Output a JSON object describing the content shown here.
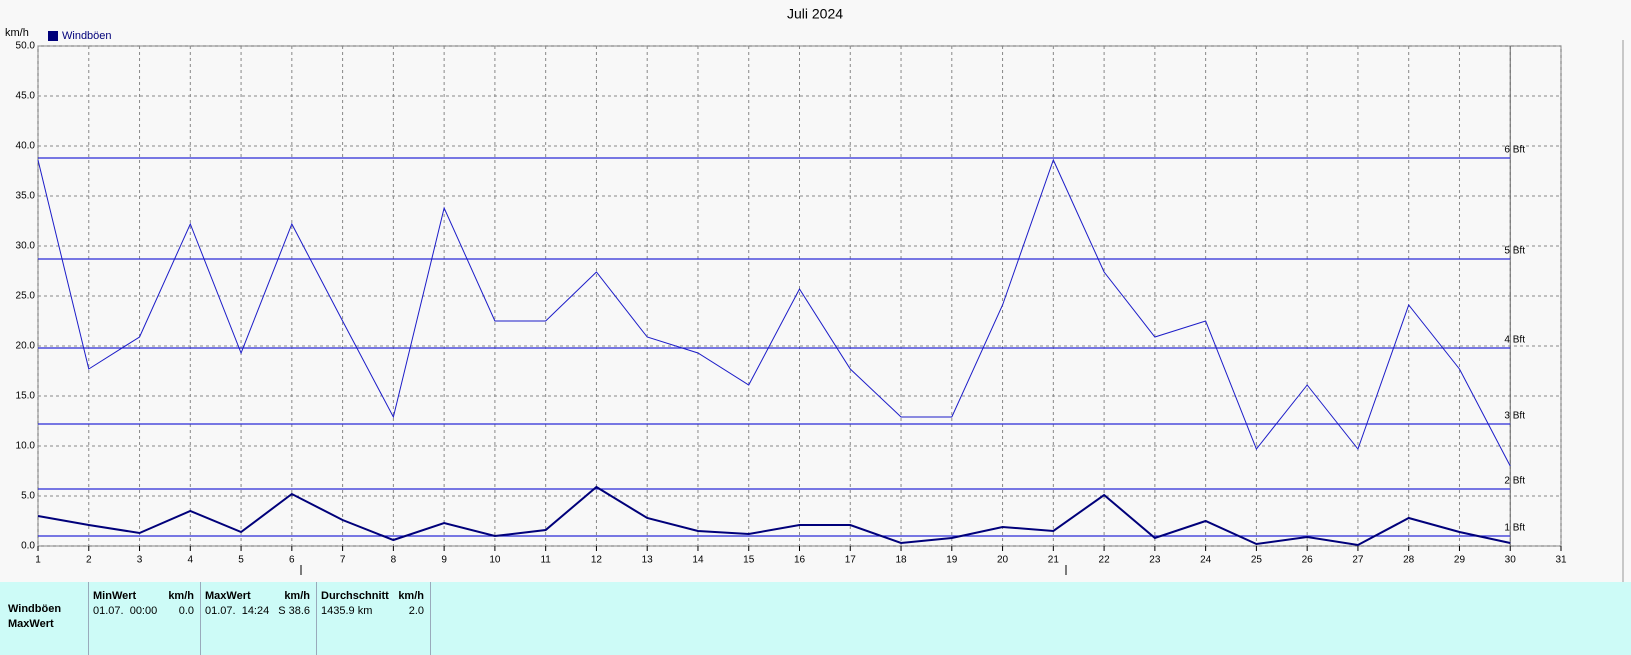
{
  "chart_data": {
    "type": "line",
    "title": "Juli 2024",
    "y_label": "km/h",
    "x": [
      1,
      2,
      3,
      4,
      5,
      6,
      7,
      8,
      9,
      10,
      11,
      12,
      13,
      14,
      15,
      16,
      17,
      18,
      19,
      20,
      21,
      22,
      23,
      24,
      25,
      26,
      27,
      28,
      29,
      30
    ],
    "xlim": [
      1,
      31
    ],
    "xticks": [
      1,
      2,
      3,
      4,
      5,
      6,
      7,
      8,
      9,
      10,
      11,
      12,
      13,
      14,
      15,
      16,
      17,
      18,
      19,
      20,
      21,
      22,
      23,
      24,
      25,
      26,
      27,
      28,
      29,
      30,
      31
    ],
    "ylim": [
      0,
      50
    ],
    "yticks": [
      {
        "value": 0,
        "label": "0.0"
      },
      {
        "value": 5,
        "label": "5.0"
      },
      {
        "value": 10,
        "label": "10.0"
      },
      {
        "value": 15,
        "label": "15.0"
      },
      {
        "value": 20,
        "label": "20.0"
      },
      {
        "value": 25,
        "label": "25.0"
      },
      {
        "value": 30,
        "label": "30.0"
      },
      {
        "value": 35,
        "label": "35.0"
      },
      {
        "value": 40,
        "label": "40.0"
      },
      {
        "value": 45,
        "label": "45.0"
      },
      {
        "value": 50,
        "label": "50.0"
      }
    ],
    "grid": true,
    "legend": "top-left",
    "reference_lines": [
      {
        "value": 1,
        "label": "1 Bft"
      },
      {
        "value": 5.7,
        "label": "2 Bft"
      },
      {
        "value": 12.2,
        "label": "3 Bft"
      },
      {
        "value": 19.8,
        "label": "4 Bft"
      },
      {
        "value": 28.7,
        "label": "5 Bft"
      },
      {
        "value": 38.8,
        "label": "6 Bft"
      }
    ],
    "reference_color": "#2a2ad6",
    "series": [
      {
        "name": "Windböen",
        "color": "#00007a",
        "width": 2,
        "values": [
          3.0,
          2.1,
          1.3,
          3.5,
          1.4,
          5.2,
          2.6,
          0.6,
          2.3,
          1.0,
          1.6,
          5.9,
          2.8,
          1.5,
          1.2,
          2.1,
          2.1,
          0.3,
          0.8,
          1.9,
          1.5,
          5.1,
          0.8,
          2.5,
          0.2,
          0.9,
          0.1,
          2.8,
          1.4,
          0.3
        ]
      },
      {
        "color": "#1c1cc8",
        "width": 1,
        "values": [
          38.6,
          17.7,
          20.9,
          32.2,
          19.3,
          32.2,
          22.5,
          12.9,
          33.8,
          22.5,
          22.5,
          27.4,
          20.9,
          19.3,
          16.1,
          25.7,
          17.7,
          12.9,
          12.9,
          24.1,
          38.6,
          27.4,
          20.9,
          22.5,
          9.7,
          16.1,
          9.7,
          24.1,
          17.7,
          8.0
        ]
      }
    ]
  },
  "stats_table": {
    "row_labels": [
      "Windböen",
      "MaxWert"
    ],
    "columns": [
      {
        "header": "MinWert",
        "unit": "km/h",
        "detail": "01.07.  00:00",
        "value": "0.0"
      },
      {
        "header": "MaxWert",
        "unit": "km/h",
        "detail": "01.07.  14:24",
        "value": "S 38.6"
      },
      {
        "header": "Durchschnitt",
        "unit": "km/h",
        "detail": "1435.9 km",
        "value": "2.0"
      }
    ]
  }
}
